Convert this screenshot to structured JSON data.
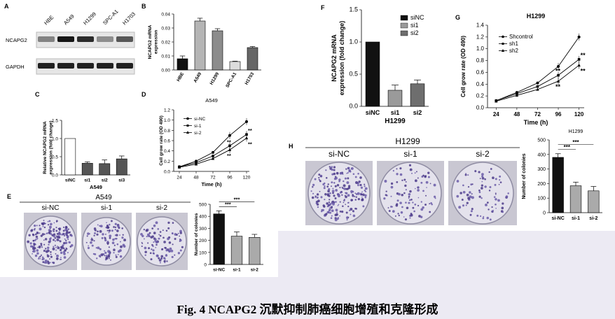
{
  "caption": "Fig. 4 NCAPG2 沉默抑制肺癌细胞增殖和克隆形成",
  "panel_labels": {
    "A": "A",
    "B": "B",
    "C": "C",
    "D": "D",
    "E": "E",
    "F": "F",
    "G": "G",
    "H": "H"
  },
  "panelA": {
    "lanes": [
      "HBE",
      "A549",
      "H1299",
      "SPC-A1",
      "H1703"
    ],
    "rows": [
      "NCAPG2",
      "GAPDH"
    ],
    "intensity": {
      "NCAPG2": [
        0.45,
        0.95,
        0.85,
        0.4,
        0.65
      ],
      "GAPDH": [
        0.9,
        0.9,
        0.9,
        0.9,
        0.9
      ]
    }
  },
  "panelE_header": "A549",
  "panelH_header": "H1299",
  "colony_labels_E": [
    "si-NC",
    "si-1",
    "si-2"
  ],
  "colony_labels_H": [
    "si-NC",
    "si-1",
    "si-2"
  ],
  "chart_data": [
    {
      "id": "B",
      "type": "bar",
      "title": "",
      "ylabel": "NCAPG2 mRNA expression",
      "xlabel": "",
      "categories": [
        "HBE",
        "A549",
        "H1299",
        "SPC-A1",
        "H1703"
      ],
      "values": [
        0.008,
        0.035,
        0.028,
        0.006,
        0.016
      ],
      "errors": [
        0.002,
        0.002,
        0.0015,
        0.0003,
        0.0007
      ],
      "colors": [
        "#111111",
        "#b5b5b5",
        "#8c8c8c",
        "#dcdcdc",
        "#666666"
      ],
      "ylim": [
        0,
        0.04
      ],
      "yticks": [
        "0.00",
        "0.01",
        "0.02",
        "0.03",
        "0.04"
      ],
      "yticks_v": [
        0,
        0.01,
        0.02,
        0.03,
        0.04
      ]
    },
    {
      "id": "C",
      "type": "bar",
      "title": "",
      "ylabel": "Relative NCAPG2 mRNA expression (fold change)",
      "xlabel": "A549",
      "categories": [
        "siNC",
        "si1",
        "si2",
        "si3"
      ],
      "values": [
        1.0,
        0.32,
        0.31,
        0.44
      ],
      "errors": [
        0,
        0.04,
        0.1,
        0.08
      ],
      "colors": [
        "#ffffff",
        "#555555",
        "#555555",
        "#555555"
      ],
      "ylim": [
        0,
        1.5
      ],
      "yticks": [
        "0.0",
        "0.5",
        "1.0",
        "1.5"
      ],
      "yticks_v": [
        0,
        0.5,
        1.0,
        1.5
      ]
    },
    {
      "id": "D",
      "type": "line",
      "title": "A549",
      "xlabel": "Time (h)",
      "ylabel": "Cell grow rate (OD 490)",
      "x": [
        24,
        48,
        72,
        96,
        120
      ],
      "xticks": [
        "24",
        "48",
        "72",
        "96",
        "120"
      ],
      "ylim": [
        0,
        1.2
      ],
      "yticks": [
        "0.0",
        "0.2",
        "0.4",
        "0.6",
        "0.8",
        "1.0",
        "1.2"
      ],
      "yticks_v": [
        0,
        0.2,
        0.4,
        0.6,
        0.8,
        1.0,
        1.2
      ],
      "series": [
        {
          "name": "si-NC",
          "values": [
            0.09,
            0.2,
            0.37,
            0.7,
            0.97
          ]
        },
        {
          "name": "si-1",
          "values": [
            0.09,
            0.17,
            0.3,
            0.5,
            0.72
          ]
        },
        {
          "name": "si-2",
          "values": [
            0.08,
            0.14,
            0.25,
            0.42,
            0.65
          ]
        }
      ],
      "annotations": [
        "**",
        "**",
        "**",
        "**"
      ]
    },
    {
      "id": "E",
      "type": "bar",
      "title": "",
      "xlabel": "",
      "ylabel": "Number of colonies",
      "categories": [
        "si-NC",
        "si-1",
        "si-2"
      ],
      "values": [
        420,
        235,
        225
      ],
      "errors": [
        25,
        35,
        25
      ],
      "colors": [
        "#111111",
        "#aaaaaa",
        "#aaaaaa"
      ],
      "ylim": [
        0,
        500
      ],
      "yticks": [
        "0",
        "100",
        "200",
        "300",
        "400",
        "500"
      ],
      "yticks_v": [
        0,
        100,
        200,
        300,
        400,
        500
      ],
      "annotations": [
        "***",
        "***"
      ]
    },
    {
      "id": "F",
      "type": "bar",
      "title": "",
      "xlabel": "H1299",
      "ylabel": "NCAPG2 mRNA expression (fold change)",
      "categories": [
        "siNC",
        "si1",
        "si2"
      ],
      "values": [
        1.0,
        0.25,
        0.35
      ],
      "errors": [
        0,
        0.08,
        0.06
      ],
      "colors": [
        "#111111",
        "#9a9a9a",
        "#6e6e6e"
      ],
      "ylim": [
        0,
        1.5
      ],
      "yticks": [
        "0.0",
        "0.5",
        "1.0",
        "1.5"
      ],
      "yticks_v": [
        0,
        0.5,
        1.0,
        1.5
      ],
      "legend": [
        "siNC",
        "si1",
        "si2"
      ]
    },
    {
      "id": "G",
      "type": "line",
      "title": "H1299",
      "xlabel": "Time (h)",
      "ylabel": "Cell grow rate (OD 490)",
      "x": [
        24,
        48,
        72,
        96,
        120
      ],
      "xticks": [
        "24",
        "48",
        "72",
        "96",
        "120"
      ],
      "ylim": [
        0,
        1.4
      ],
      "yticks": [
        "0.0",
        "0.2",
        "0.4",
        "0.6",
        "0.8",
        "1.0",
        "1.2",
        "1.4"
      ],
      "yticks_v": [
        0,
        0.2,
        0.4,
        0.6,
        0.8,
        1.0,
        1.2,
        1.4
      ],
      "series": [
        {
          "name": "Shcontrol",
          "values": [
            0.12,
            0.26,
            0.42,
            0.7,
            1.2
          ]
        },
        {
          "name": "sh1",
          "values": [
            0.12,
            0.24,
            0.36,
            0.55,
            0.82
          ]
        },
        {
          "name": "sh2",
          "values": [
            0.11,
            0.21,
            0.31,
            0.45,
            0.72
          ]
        }
      ],
      "annotations": [
        "**",
        "**",
        "**",
        "**"
      ]
    },
    {
      "id": "H",
      "type": "bar",
      "title": "H1299",
      "xlabel": "",
      "ylabel": "Number of colonies",
      "categories": [
        "si-NC",
        "si-1",
        "si-2"
      ],
      "values": [
        380,
        185,
        150
      ],
      "errors": [
        25,
        25,
        30
      ],
      "colors": [
        "#111111",
        "#aaaaaa",
        "#aaaaaa"
      ],
      "ylim": [
        0,
        500
      ],
      "yticks": [
        "0",
        "100",
        "200",
        "300",
        "400",
        "500"
      ],
      "yticks_v": [
        0,
        100,
        200,
        300,
        400,
        500
      ],
      "annotations": [
        "***",
        "***"
      ]
    }
  ]
}
